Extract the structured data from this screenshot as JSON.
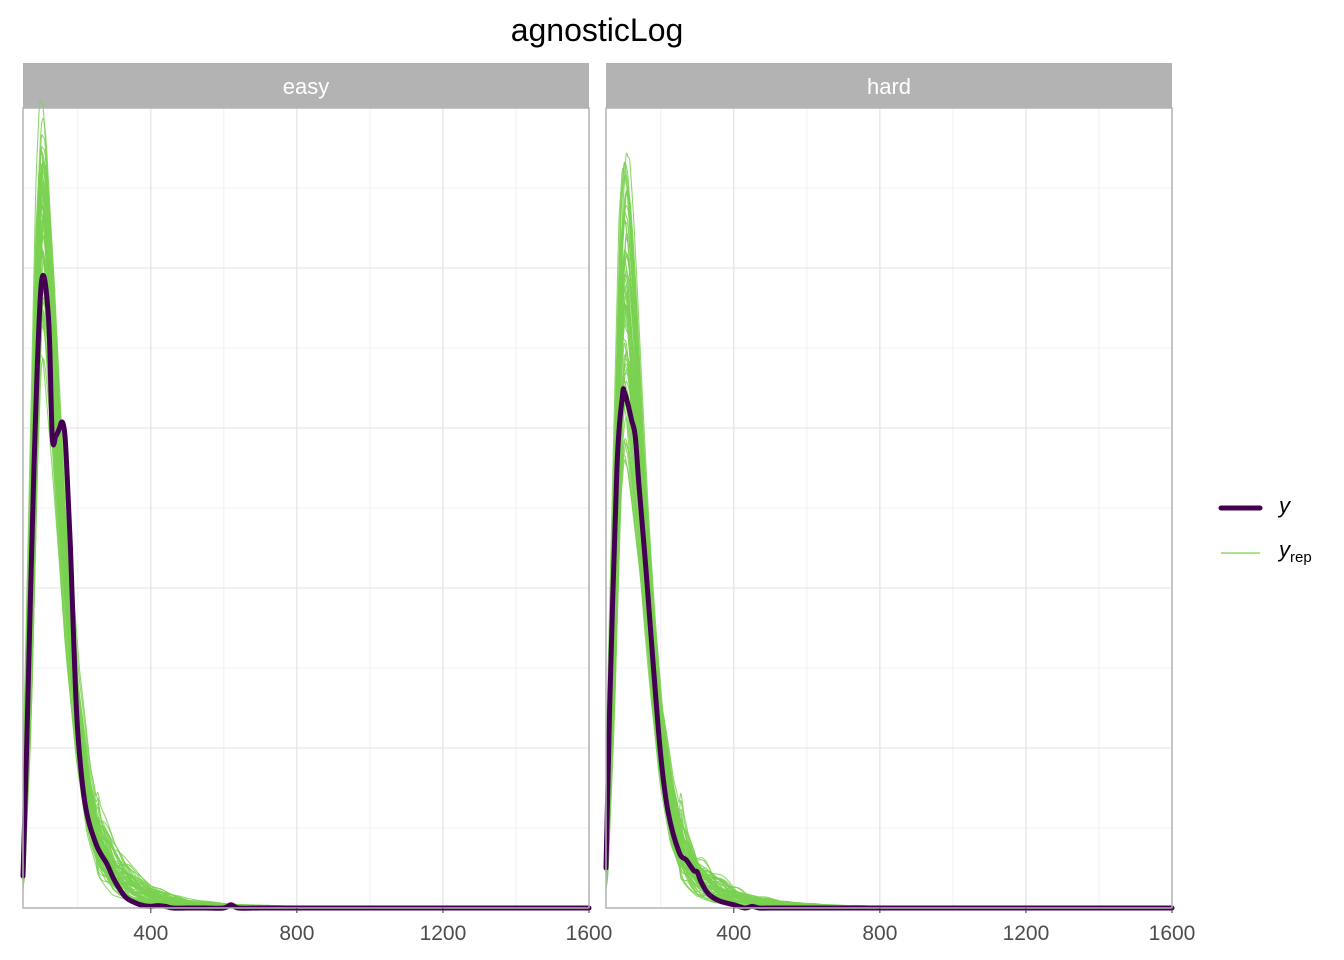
{
  "chart_data": {
    "type": "line",
    "title": "agnosticLog",
    "xlabel": "",
    "ylabel": "",
    "xlim": [
      50,
      1600
    ],
    "x_ticks": [
      400,
      800,
      1200,
      1600
    ],
    "x_tick_labels": [
      "400",
      "800",
      "1200",
      "1600"
    ],
    "ylim": [
      0,
      1
    ],
    "y_axis_labels_shown": false,
    "grid": true,
    "legend_position": "right",
    "legend": [
      {
        "key": "y",
        "label": "y",
        "subscript": ""
      },
      {
        "key": "yrep",
        "label": "y",
        "subscript": "rep"
      }
    ],
    "colors": {
      "y": "#440154",
      "yrep": "#7ad151"
    },
    "yrep_draws": 60,
    "facets": [
      {
        "label": "easy",
        "y": {
          "x": [
            50,
            60,
            80,
            100,
            120,
            130,
            140,
            150,
            155,
            160,
            165,
            170,
            180,
            190,
            200,
            220,
            250,
            280,
            300,
            330,
            360,
            380,
            400,
            420,
            440,
            460,
            500,
            550,
            600,
            620,
            640,
            700,
            800,
            1000,
            1200,
            1600
          ],
          "y": [
            0.04,
            0.2,
            0.55,
            0.78,
            0.737,
            0.59,
            0.59,
            0.6,
            0.607,
            0.605,
            0.59,
            0.55,
            0.45,
            0.32,
            0.22,
            0.13,
            0.08,
            0.055,
            0.035,
            0.014,
            0.006,
            0.003,
            0.002,
            0.003,
            0.002,
            0.0,
            0.0,
            0.0,
            0.0,
            0.004,
            0.0,
            0.0,
            0.0,
            0.0,
            0.0,
            0.0
          ]
        },
        "yrep_envelope": {
          "x": [
            50,
            70,
            90,
            100,
            110,
            130,
            150,
            170,
            200,
            230,
            260,
            300,
            350,
            400,
            450,
            500,
            600,
            700,
            800,
            1000,
            1600
          ],
          "peak": [
            0.1,
            0.5,
            0.9,
            0.985,
            0.97,
            0.82,
            0.62,
            0.47,
            0.3,
            0.18,
            0.11,
            0.07,
            0.045,
            0.027,
            0.016,
            0.01,
            0.005,
            0.003,
            0.002,
            0.001,
            0.0
          ],
          "low": [
            0.02,
            0.22,
            0.6,
            0.72,
            0.7,
            0.58,
            0.45,
            0.32,
            0.18,
            0.09,
            0.045,
            0.02,
            0.008,
            0.003,
            0.001,
            0.0,
            0.0,
            0.0,
            0.0,
            0.0,
            0.0
          ]
        }
      },
      {
        "label": "hard",
        "y": {
          "x": [
            50,
            60,
            80,
            95,
            100,
            110,
            120,
            130,
            140,
            160,
            180,
            200,
            220,
            250,
            270,
            290,
            300,
            310,
            330,
            360,
            400,
            430,
            450,
            470,
            500,
            600,
            800,
            1200,
            1600
          ],
          "y": [
            0.05,
            0.25,
            0.55,
            0.64,
            0.645,
            0.63,
            0.61,
            0.59,
            0.53,
            0.42,
            0.3,
            0.19,
            0.12,
            0.07,
            0.06,
            0.047,
            0.045,
            0.033,
            0.018,
            0.009,
            0.004,
            0.0,
            0.002,
            0.0,
            0.0,
            0.0,
            0.0,
            0.0,
            0.0
          ]
        },
        "yrep_envelope": {
          "x": [
            50,
            70,
            90,
            100,
            110,
            120,
            140,
            160,
            180,
            200,
            230,
            260,
            300,
            350,
            400,
            450,
            500,
            600,
            700,
            800,
            1000,
            1600
          ],
          "peak": [
            0.1,
            0.5,
            0.88,
            0.94,
            0.92,
            0.85,
            0.68,
            0.52,
            0.38,
            0.26,
            0.16,
            0.1,
            0.06,
            0.038,
            0.024,
            0.015,
            0.01,
            0.005,
            0.003,
            0.002,
            0.001,
            0.0
          ],
          "low": [
            0.02,
            0.22,
            0.52,
            0.58,
            0.57,
            0.53,
            0.44,
            0.34,
            0.24,
            0.16,
            0.08,
            0.04,
            0.018,
            0.007,
            0.002,
            0.001,
            0.0,
            0.0,
            0.0,
            0.0,
            0.0,
            0.0
          ]
        }
      }
    ]
  }
}
